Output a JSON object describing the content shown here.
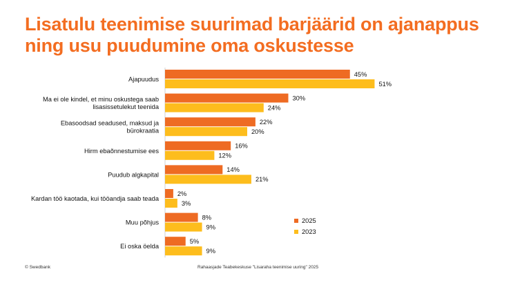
{
  "title": {
    "line1": "Lisatulu teenimise suurimad barjäärid on ajanappus",
    "line2": "ning usu puudumine oma oskustesse"
  },
  "footer": {
    "copyright": "© Swedbank",
    "source": "Rahaasjade Teabekeskuse \"Lisaraha teenimise uuring\" 2025"
  },
  "colors": {
    "title": "#f36d21",
    "series_2025": "#ee6b23",
    "series_2023": "#fdbd1d"
  },
  "chart_data": {
    "type": "bar",
    "orientation": "horizontal",
    "categories": [
      [
        "Ajapuudus"
      ],
      [
        "Ma ei ole kindel, et minu oskustega saab",
        "lisasissetulekut teenida"
      ],
      [
        "Ebasoodsad seadused, maksud ja",
        "bürokraatia"
      ],
      [
        "Hirm ebaõnnestumise ees"
      ],
      [
        "Puudub algkapital"
      ],
      [
        "Kardan töö kaotada, kui tööandja saab teada"
      ],
      [
        "Muu põhjus"
      ],
      [
        "Ei oska öelda"
      ]
    ],
    "series": [
      {
        "name": "2025",
        "values": [
          45,
          30,
          22,
          16,
          14,
          2,
          8,
          5
        ],
        "labels": [
          "45%",
          "30%",
          "22%",
          "16%",
          "14%",
          "2%",
          "8%",
          "5%"
        ]
      },
      {
        "name": "2023",
        "values": [
          51,
          24,
          20,
          12,
          21,
          3,
          9,
          9
        ],
        "labels": [
          "51%",
          "24%",
          "20%",
          "12%",
          "21%",
          "3%",
          "9%",
          "9%"
        ]
      }
    ],
    "value_unit": "%",
    "legend_position": "bottom-right",
    "grid": false
  }
}
